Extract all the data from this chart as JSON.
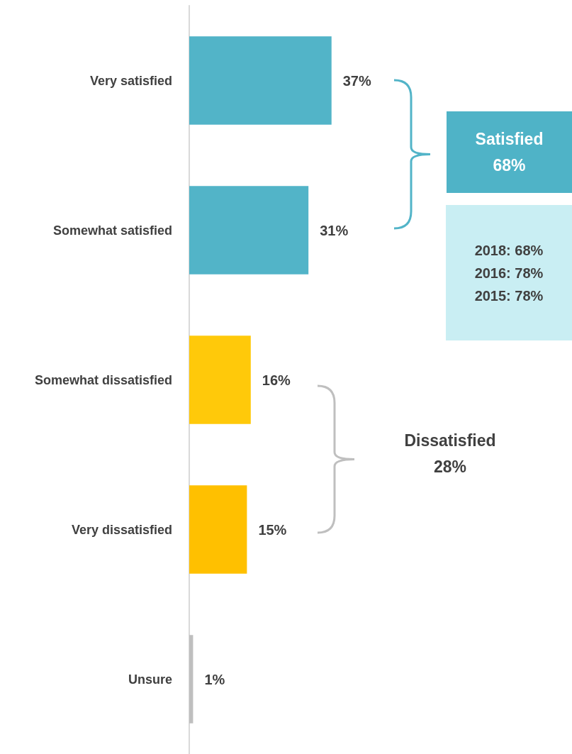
{
  "chart_data": {
    "type": "bar",
    "orientation": "horizontal",
    "categories": [
      "Very satisfied",
      "Somewhat satisfied",
      "Somewhat dissatisfied",
      "Very dissatisfied",
      "Unsure"
    ],
    "values": [
      37,
      31,
      16,
      15,
      1
    ],
    "colors": [
      "#52b4c8",
      "#52b4c8",
      "#ffc90a",
      "#ffc000",
      "#bfbfbf"
    ],
    "value_labels": [
      "37%",
      "31%",
      "16%",
      "15%",
      "1%"
    ],
    "annotations": [
      "Satisfied 68%",
      "2018: 68%",
      "2016: 78%",
      "2015: 78%",
      "Dissatisfied 28%"
    ]
  }
}
